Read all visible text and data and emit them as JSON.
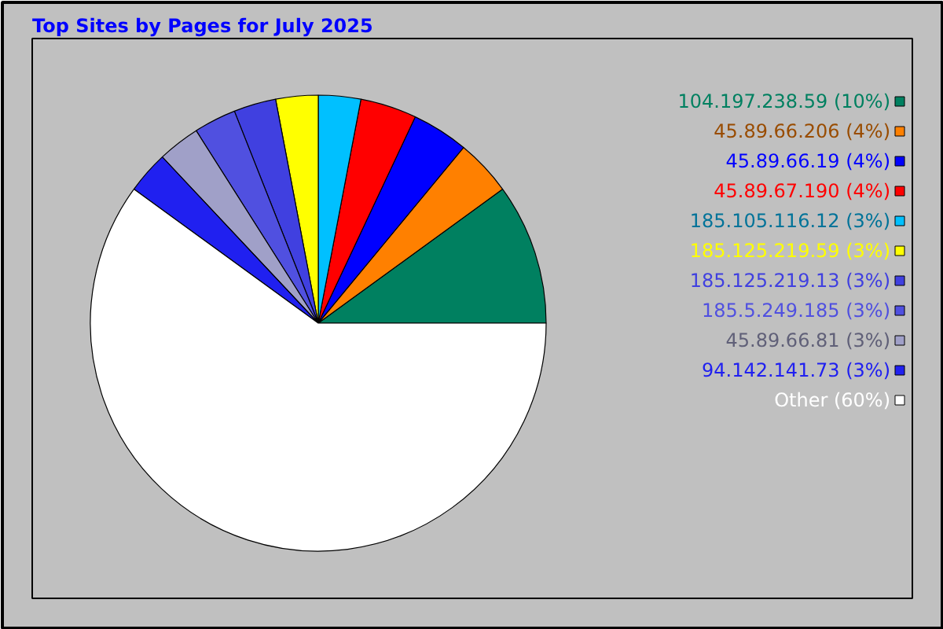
{
  "chart_data": {
    "type": "pie",
    "title": "Top Sites by Pages for July 2025",
    "categories": [
      "104.197.238.59 (10%)",
      "45.89.66.206 (4%)",
      "45.89.66.19 (4%)",
      "45.89.67.190 (4%)",
      "185.105.116.12 (3%)",
      "185.125.219.59 (3%)",
      "185.125.219.13 (3%)",
      "185.5.249.185 (3%)",
      "45.89.66.81 (3%)",
      "94.142.141.73 (3%)",
      "Other (60%)"
    ],
    "values": [
      10,
      4,
      4,
      4,
      3,
      3,
      3,
      3,
      3,
      3,
      60
    ],
    "colors": [
      "#008060",
      "#ff8000",
      "#0000ff",
      "#ff0000",
      "#00c0ff",
      "#ffff00",
      "#4040e0",
      "#5050e0",
      "#a0a0c8",
      "#2020f0",
      "#ffffff"
    ],
    "legend": "top right"
  }
}
